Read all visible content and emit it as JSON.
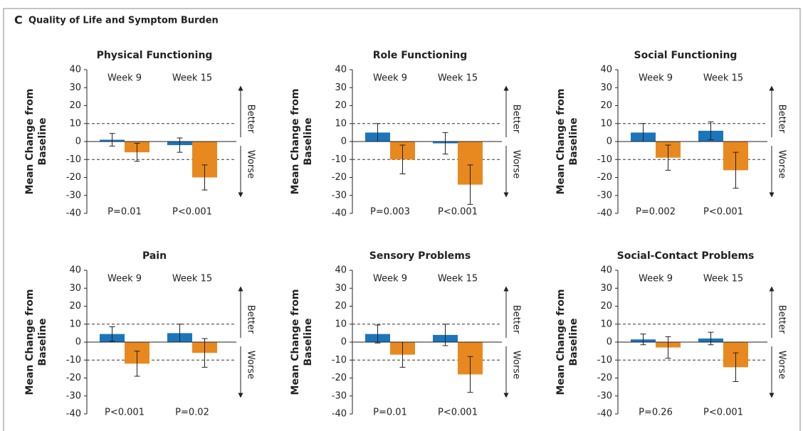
{
  "figure": {
    "label": "C",
    "title": "Quality of Life and Symptom Burden"
  },
  "chart_data": [
    {
      "type": "bar",
      "title": "Physical Functioning",
      "ylabel": [
        "Mean Change from",
        "Baseline"
      ],
      "categories": [
        "Week 9",
        "Week 15"
      ],
      "p_values": [
        "P=0.01",
        "P<0.001"
      ],
      "series": [
        {
          "color": "#1b75bb",
          "values": [
            1,
            -2
          ],
          "errors": [
            3.5,
            4
          ]
        },
        {
          "color": "#e8891f",
          "values": [
            -6,
            -20
          ],
          "errors": [
            5,
            7
          ]
        }
      ],
      "ylim": [
        -40,
        40
      ],
      "yticks": [
        -40,
        -30,
        -20,
        -10,
        0,
        10,
        20,
        30,
        40
      ],
      "reference_lines": [
        10,
        -10
      ],
      "annotations": {
        "up": "Better",
        "down": "Worse"
      }
    },
    {
      "type": "bar",
      "title": "Role Functioning",
      "ylabel": [
        "Mean Change from",
        "Baseline"
      ],
      "categories": [
        "Week 9",
        "Week 15"
      ],
      "p_values": [
        "P=0.003",
        "P<0.001"
      ],
      "series": [
        {
          "color": "#1b75bb",
          "values": [
            5,
            -1
          ],
          "errors": [
            5,
            6
          ]
        },
        {
          "color": "#e8891f",
          "values": [
            -10,
            -24
          ],
          "errors": [
            8,
            11
          ]
        }
      ],
      "ylim": [
        -40,
        40
      ],
      "yticks": [
        -40,
        -30,
        -20,
        -10,
        0,
        10,
        20,
        30,
        40
      ],
      "reference_lines": [
        10,
        -10
      ],
      "annotations": {
        "up": "Better",
        "down": "Worse"
      }
    },
    {
      "type": "bar",
      "title": "Social Functioning",
      "ylabel": [
        "Mean Change from",
        "Baseline"
      ],
      "categories": [
        "Week 9",
        "Week 15"
      ],
      "p_values": [
        "P=0.002",
        "P<0.001"
      ],
      "series": [
        {
          "color": "#1b75bb",
          "values": [
            5,
            6
          ],
          "errors": [
            5,
            5
          ]
        },
        {
          "color": "#e8891f",
          "values": [
            -9,
            -16
          ],
          "errors": [
            7,
            10
          ]
        }
      ],
      "ylim": [
        -40,
        40
      ],
      "yticks": [
        -40,
        -30,
        -20,
        -10,
        0,
        10,
        20,
        30,
        40
      ],
      "reference_lines": [
        10,
        -10
      ],
      "annotations": {
        "up": "Better",
        "down": "Worse"
      }
    },
    {
      "type": "bar",
      "title": "Pain",
      "ylabel": [
        "Mean Change from",
        "Baseline"
      ],
      "categories": [
        "Week 9",
        "Week 15"
      ],
      "p_values": [
        "P<0.001",
        "P=0.02"
      ],
      "series": [
        {
          "color": "#1b75bb",
          "values": [
            4.5,
            5
          ],
          "errors": [
            4,
            5
          ]
        },
        {
          "color": "#e8891f",
          "values": [
            -12,
            -6
          ],
          "errors": [
            7,
            8
          ]
        }
      ],
      "ylim": [
        -40,
        40
      ],
      "yticks": [
        -40,
        -30,
        -20,
        -10,
        0,
        10,
        20,
        30,
        40
      ],
      "reference_lines": [
        10,
        -10
      ],
      "annotations": {
        "up": "Better",
        "down": "Worse"
      }
    },
    {
      "type": "bar",
      "title": "Sensory Problems",
      "ylabel": [
        "Mean Change from",
        "Baseline"
      ],
      "categories": [
        "Week 9",
        "Week 15"
      ],
      "p_values": [
        "P=0.01",
        "P<0.001"
      ],
      "series": [
        {
          "color": "#1b75bb",
          "values": [
            4.5,
            4
          ],
          "errors": [
            5,
            6
          ]
        },
        {
          "color": "#e8891f",
          "values": [
            -7,
            -18
          ],
          "errors": [
            7,
            10
          ]
        }
      ],
      "ylim": [
        -40,
        40
      ],
      "yticks": [
        -40,
        -30,
        -20,
        -10,
        0,
        10,
        20,
        30,
        40
      ],
      "reference_lines": [
        10,
        -10
      ],
      "annotations": {
        "up": "Better",
        "down": "Worse"
      }
    },
    {
      "type": "bar",
      "title": "Social-Contact Problems",
      "ylabel": [
        "Mean Change from",
        "Baseline"
      ],
      "categories": [
        "Week 9",
        "Week 15"
      ],
      "p_values": [
        "P=0.26",
        "P<0.001"
      ],
      "series": [
        {
          "color": "#1b75bb",
          "values": [
            1.5,
            2
          ],
          "errors": [
            3,
            3.5
          ]
        },
        {
          "color": "#e8891f",
          "values": [
            -3,
            -14
          ],
          "errors": [
            6,
            8
          ]
        }
      ],
      "ylim": [
        -40,
        40
      ],
      "yticks": [
        -40,
        -30,
        -20,
        -10,
        0,
        10,
        20,
        30,
        40
      ],
      "reference_lines": [
        10,
        -10
      ],
      "annotations": {
        "up": "Better",
        "down": "Worse"
      }
    }
  ]
}
